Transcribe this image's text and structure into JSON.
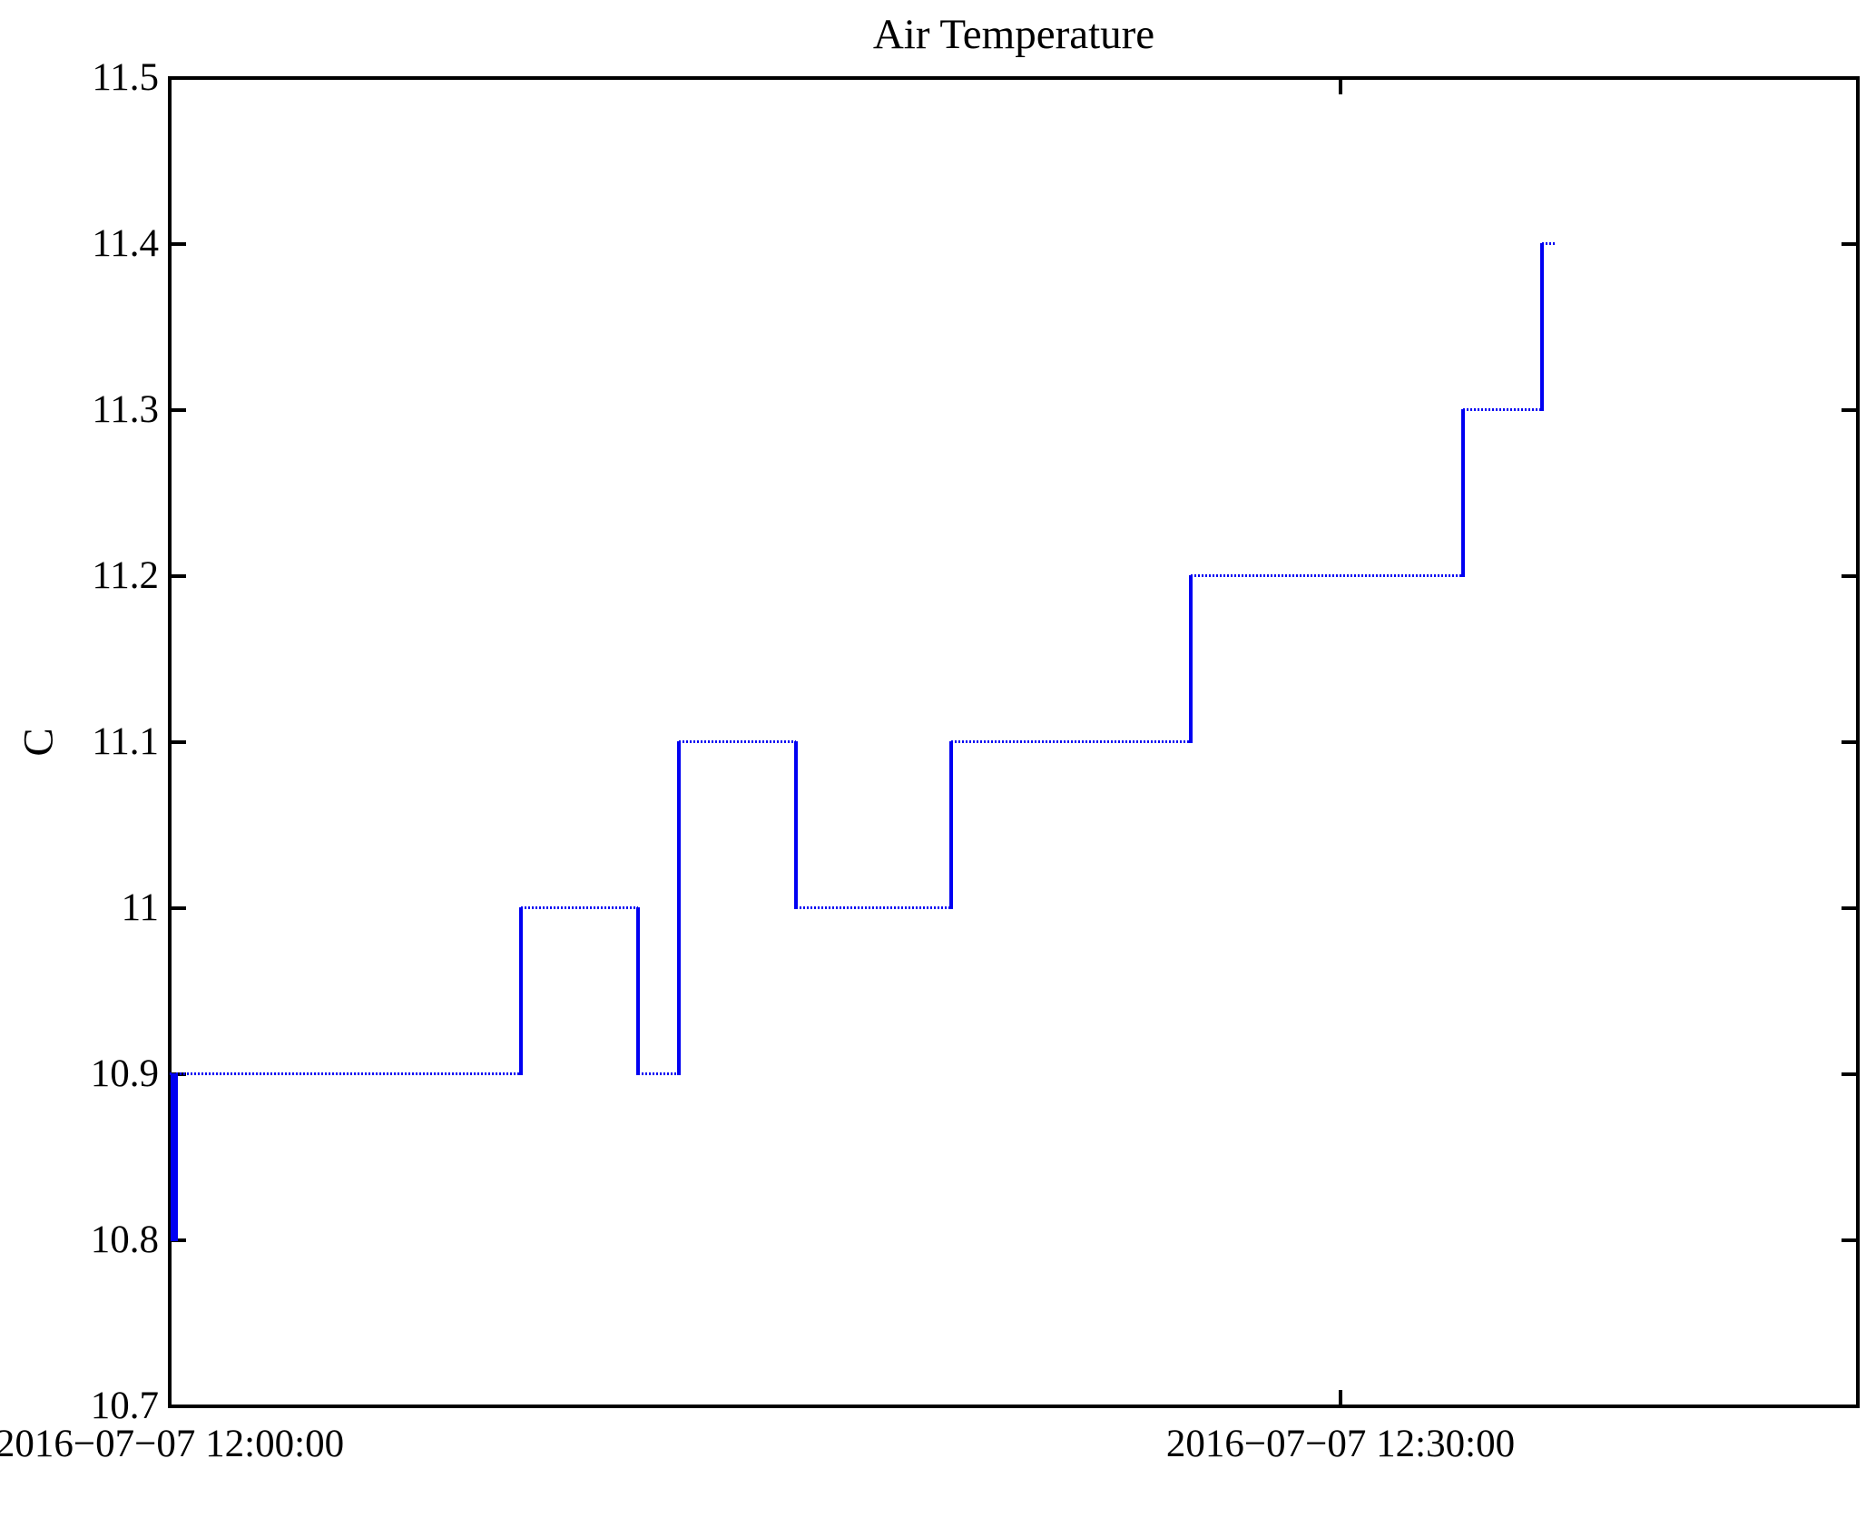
{
  "figure": {
    "title": "Air Temperature",
    "y_axis": {
      "label": "C",
      "tick_labels": [
        "11.5",
        "11.4",
        "11.3",
        "11.2",
        "11.1",
        "11",
        "10.9",
        "10.8",
        "10.7"
      ],
      "tick_values": [
        11.5,
        11.4,
        11.3,
        11.2,
        11.1,
        11.0,
        10.9,
        10.8,
        10.7
      ]
    },
    "x_axis": {
      "tick_labels": [
        "2016−07−07 12:00:00",
        "2016−07−07 12:30:00"
      ],
      "tick_minutes": [
        0,
        30
      ]
    },
    "colors": {
      "line": "#0000f2",
      "axis": "#000000",
      "background": "#ffffff"
    }
  },
  "chart_data": {
    "type": "line",
    "line_style": "step-post",
    "marker_style": "dotted-horizontal-runs",
    "title": "Air Temperature",
    "xlabel": "",
    "ylabel": "C",
    "ylim": [
      10.7,
      11.5
    ],
    "xlim": [
      "2016-07-07 12:00:00",
      "2016-07-07 12:43:15"
    ],
    "x_ticks": [
      "2016-07-07 12:00:00",
      "2016-07-07 12:30:00"
    ],
    "y_ticks": [
      10.7,
      10.8,
      10.9,
      11.0,
      11.1,
      11.2,
      11.3,
      11.4,
      11.5
    ],
    "grid": false,
    "legend": null,
    "series": [
      {
        "name": "Air Temperature (C)",
        "color": "#0000f2",
        "points": [
          {
            "time": "12:00:00",
            "t_min": 0.0,
            "value": 10.9
          },
          {
            "time": "12:00:04",
            "t_min": 0.07,
            "value": 10.8
          },
          {
            "time": "12:00:10",
            "t_min": 0.16,
            "value": 10.9
          },
          {
            "time": "12:09:00",
            "t_min": 9.0,
            "value": 11.0
          },
          {
            "time": "12:12:00",
            "t_min": 12.0,
            "value": 10.9
          },
          {
            "time": "12:13:03",
            "t_min": 13.05,
            "value": 11.1
          },
          {
            "time": "12:16:03",
            "t_min": 16.05,
            "value": 11.0
          },
          {
            "time": "12:20:01",
            "t_min": 20.02,
            "value": 11.1
          },
          {
            "time": "12:26:10",
            "t_min": 26.16,
            "value": 11.2
          },
          {
            "time": "12:33:08",
            "t_min": 33.14,
            "value": 11.3
          },
          {
            "time": "12:35:10",
            "t_min": 35.16,
            "value": 11.4
          }
        ],
        "end_time": "12:35:31",
        "end_t_min": 35.51
      }
    ]
  }
}
